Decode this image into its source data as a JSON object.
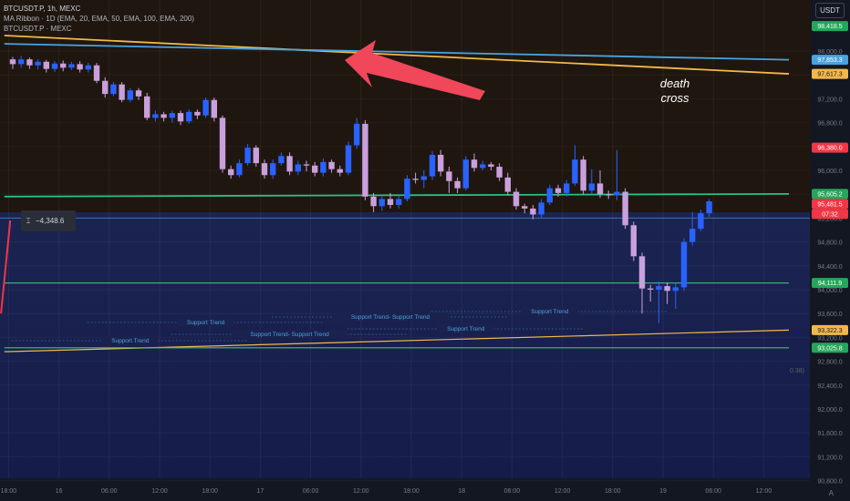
{
  "legend": {
    "symbol": "BTCUSDT.P, 1h, MEXC",
    "ma_ribbon": "MA Ribbon · 1D (EMA, 20, EMA, 50, EMA, 100, EMA, 200)",
    "secondary": "BTCUSDT.P · MEXC"
  },
  "currency": "USDT",
  "measure_value": "−4,348.6",
  "annotation": [
    "death",
    "cross"
  ],
  "small_label": "0.38)",
  "auto_label": "A",
  "colors": {
    "up": "#2962ff",
    "down": "#c9a0dc",
    "ema_blue": "#4aa3df",
    "ema_orange": "#f2b84b",
    "ema_green": "#26c281",
    "arrow": "#f0475a",
    "price_red": "#f23645"
  },
  "chart_data": {
    "type": "candlestick",
    "ylim": [
      90600,
      98600
    ],
    "y_ticks": [
      "98,000.0",
      "97,600.0",
      "97,200.0",
      "96,800.0",
      "96,400.0",
      "96,000.0",
      "95,600.0",
      "95,200.0",
      "94,800.0",
      "94,400.0",
      "94,000.0",
      "93,600.0",
      "93,200.0",
      "92,800.0",
      "92,400.0",
      "92,000.0",
      "91,600.0",
      "91,200.0",
      "90,800.0"
    ],
    "y_tick_values": [
      98000,
      97600,
      97200,
      96800,
      96400,
      96000,
      95600,
      95200,
      94800,
      94400,
      94000,
      93600,
      93200,
      92800,
      92400,
      92000,
      91600,
      91200,
      90800
    ],
    "x_ticks": [
      {
        "label": "18:00",
        "i": -0.5
      },
      {
        "label": "16",
        "i": 5.5
      },
      {
        "label": "06:00",
        "i": 11.5
      },
      {
        "label": "12:00",
        "i": 17.5
      },
      {
        "label": "18:00",
        "i": 23.5
      },
      {
        "label": "17",
        "i": 29.5
      },
      {
        "label": "06:00",
        "i": 35.5
      },
      {
        "label": "12:00",
        "i": 41.5
      },
      {
        "label": "18:00",
        "i": 47.5
      },
      {
        "label": "18",
        "i": 53.5
      },
      {
        "label": "06:00",
        "i": 59.5
      },
      {
        "label": "12:00",
        "i": 65.5
      },
      {
        "label": "18:00",
        "i": 71.5
      },
      {
        "label": "19",
        "i": 77.5
      },
      {
        "label": "06:00",
        "i": 83.5
      },
      {
        "label": "12:00",
        "i": 89.5
      }
    ],
    "candles": [
      [
        97860,
        97780,
        97900,
        97700
      ],
      [
        97780,
        97860,
        97920,
        97720
      ],
      [
        97860,
        97760,
        97890,
        97700
      ],
      [
        97760,
        97820,
        97860,
        97690
      ],
      [
        97820,
        97700,
        97850,
        97640
      ],
      [
        97700,
        97790,
        97830,
        97650
      ],
      [
        97790,
        97720,
        97840,
        97660
      ],
      [
        97720,
        97780,
        97820,
        97680
      ],
      [
        97780,
        97690,
        97830,
        97640
      ],
      [
        97690,
        97760,
        97800,
        97640
      ],
      [
        97760,
        97500,
        97800,
        97460
      ],
      [
        97500,
        97280,
        97560,
        97220
      ],
      [
        97280,
        97440,
        97480,
        97240
      ],
      [
        97440,
        97180,
        97480,
        97140
      ],
      [
        97180,
        97340,
        97380,
        97140
      ],
      [
        97340,
        97240,
        97380,
        97180
      ],
      [
        97240,
        96880,
        97300,
        96840
      ],
      [
        96880,
        96940,
        97000,
        96820
      ],
      [
        96940,
        96880,
        96980,
        96820
      ],
      [
        96880,
        96960,
        97000,
        96800
      ],
      [
        96960,
        96820,
        97000,
        96760
      ],
      [
        96820,
        96980,
        97020,
        96780
      ],
      [
        96980,
        96920,
        97020,
        96860
      ],
      [
        96920,
        97180,
        97220,
        96880
      ],
      [
        97180,
        96880,
        97220,
        96820
      ],
      [
        96880,
        96020,
        96920,
        95960
      ],
      [
        96020,
        95920,
        96080,
        95860
      ],
      [
        95920,
        96120,
        96180,
        95880
      ],
      [
        96120,
        96380,
        96440,
        96080
      ],
      [
        96380,
        96120,
        96420,
        96060
      ],
      [
        96120,
        95920,
        96180,
        95860
      ],
      [
        95920,
        96120,
        96180,
        95860
      ],
      [
        96120,
        96240,
        96300,
        96080
      ],
      [
        96240,
        95980,
        96300,
        95920
      ],
      [
        95980,
        96100,
        96160,
        95920
      ],
      [
        96100,
        96080,
        96160,
        95980
      ],
      [
        96080,
        95960,
        96140,
        95900
      ],
      [
        95960,
        96140,
        96200,
        95900
      ],
      [
        96140,
        96020,
        96180,
        95960
      ],
      [
        96020,
        95960,
        96080,
        95900
      ],
      [
        95960,
        96420,
        96480,
        95920
      ],
      [
        96420,
        96780,
        96880,
        96360
      ],
      [
        96780,
        95560,
        96840,
        95500
      ],
      [
        95560,
        95400,
        95620,
        95300
      ],
      [
        95400,
        95520,
        95580,
        95320
      ],
      [
        95520,
        95420,
        95620,
        95360
      ],
      [
        95420,
        95520,
        95580,
        95360
      ],
      [
        95520,
        95860,
        95920,
        95480
      ],
      [
        95860,
        95840,
        95960,
        95780
      ],
      [
        95840,
        95900,
        96000,
        95700
      ],
      [
        95900,
        96260,
        96320,
        95840
      ],
      [
        96260,
        95980,
        96340,
        95900
      ],
      [
        95980,
        95820,
        96060,
        95620
      ],
      [
        95820,
        95700,
        95880,
        95620
      ],
      [
        95700,
        96180,
        96240,
        95660
      ],
      [
        96180,
        96040,
        96280,
        95980
      ],
      [
        96040,
        96100,
        96160,
        96000
      ],
      [
        96100,
        96060,
        96140,
        96000
      ],
      [
        96060,
        95880,
        96120,
        95820
      ],
      [
        95880,
        95640,
        95960,
        95580
      ],
      [
        95640,
        95400,
        95700,
        95340
      ],
      [
        95400,
        95360,
        95440,
        95280
      ],
      [
        95360,
        95260,
        95420,
        95180
      ],
      [
        95260,
        95460,
        95520,
        95200
      ],
      [
        95460,
        95700,
        95760,
        95420
      ],
      [
        95700,
        95620,
        95760,
        95560
      ],
      [
        95620,
        95780,
        95840,
        95560
      ],
      [
        95780,
        96180,
        96420,
        95740
      ],
      [
        96180,
        95660,
        96240,
        95600
      ],
      [
        95660,
        95780,
        96020,
        95600
      ],
      [
        95780,
        95600,
        96000,
        95540
      ],
      [
        95600,
        95580,
        95660,
        95520
      ],
      [
        95580,
        95640,
        96340,
        95500
      ],
      [
        95640,
        95080,
        95700,
        95020
      ],
      [
        95080,
        94560,
        95140,
        94480
      ],
      [
        94560,
        94020,
        94620,
        93600
      ],
      [
        94020,
        94000,
        94080,
        93800
      ],
      [
        94000,
        94060,
        94140,
        93440
      ],
      [
        94060,
        93980,
        94120,
        93760
      ],
      [
        93980,
        94040,
        94100,
        93680
      ],
      [
        94040,
        94800,
        94860,
        93980
      ],
      [
        94800,
        95020,
        95300,
        94740
      ],
      [
        95020,
        95280,
        95340,
        94980
      ],
      [
        95280,
        95481,
        95520,
        95220
      ]
    ],
    "ema_lines": [
      {
        "name": "EMA orange",
        "color": "#f2b84b",
        "from": {
          "i": -1,
          "y": 98260
        },
        "to": {
          "i": 92.5,
          "y": 97617.3
        }
      },
      {
        "name": "EMA blue",
        "color": "#4aa3df",
        "from": {
          "i": -1,
          "y": 98120
        },
        "to": {
          "i": 92.5,
          "y": 97853.3
        }
      },
      {
        "name": "EMA green",
        "color": "#26c281",
        "from": {
          "i": -1,
          "y": 95560
        },
        "to": {
          "i": 92.5,
          "y": 95605.2
        }
      }
    ],
    "support_lines": [
      {
        "color": "#f2b84b",
        "from": {
          "i": -1,
          "y": 92960
        },
        "to": {
          "i": 92.5,
          "y": 93322.3
        }
      },
      {
        "color": "#3fbf7f",
        "from": {
          "i": -1,
          "y": 94111.9
        },
        "to": {
          "i": 92.5,
          "y": 94111.9
        }
      },
      {
        "color": "#3fbf7f",
        "from": {
          "i": -1,
          "y": 93025.8
        },
        "to": {
          "i": 92.5,
          "y": 93025.8
        }
      }
    ],
    "support_trend_labels": [
      {
        "text": "Support Trend",
        "i": 23
      },
      {
        "text": "Support Trend- Support Trend",
        "i": 45
      },
      {
        "text": "Support Trend",
        "i": 64
      },
      {
        "text": "Support Trend",
        "i": 14
      },
      {
        "text": "Support Trend- Support Trend",
        "i": 33
      },
      {
        "text": "Support Trend",
        "i": 54
      }
    ],
    "price_tags": [
      {
        "value": "98,418.5",
        "y": 98418.5,
        "bg": "#26a65b",
        "fg": "#ffffff"
      },
      {
        "value": "97,853.3",
        "y": 97853.3,
        "bg": "#4aa3df",
        "fg": "#ffffff"
      },
      {
        "value": "97,617.3",
        "y": 97617.3,
        "bg": "#f2b84b",
        "fg": "#131722"
      },
      {
        "value": "96,380.0",
        "y": 96380,
        "bg": "#f23645",
        "fg": "#ffffff"
      },
      {
        "value": "95,605.2",
        "y": 95605.2,
        "bg": "#26a65b",
        "fg": "#ffffff"
      },
      {
        "value": "95,481.5",
        "y": 95481.5,
        "bg": "#f23645",
        "fg": "#ffffff"
      },
      {
        "value": "07:32",
        "y": 95400,
        "bg": "#f23645",
        "fg": "#ffffff"
      },
      {
        "value": "94,111.9",
        "y": 94111.9,
        "bg": "#26a65b",
        "fg": "#ffffff"
      },
      {
        "value": "93,322.3",
        "y": 93322.3,
        "bg": "#f2b84b",
        "fg": "#131722"
      },
      {
        "value": "93,025.8",
        "y": 93025.8,
        "bg": "#26a65b",
        "fg": "#ffffff"
      }
    ]
  }
}
